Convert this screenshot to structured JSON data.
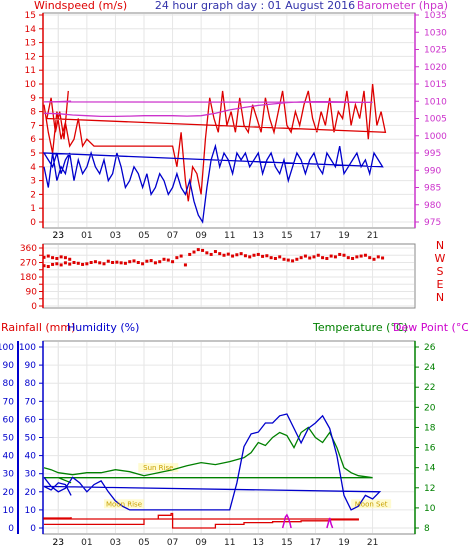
{
  "header": {
    "title": "24 hour graph day : 01 August 2016",
    "left_label": "Windspeed (m/s)",
    "right_label": "Barometer (hpa)"
  },
  "bottom_header": {
    "rainfall_label": "Rainfall (mm)",
    "humidity_label": "Humidity (%)",
    "temperature_label": "Temperature (°C)",
    "dewpoint_label": "Dew Point (°C)"
  },
  "colors": {
    "wind": "#dd0000",
    "gust": "#dd0000",
    "avg": "#0000cc",
    "baro": "#cc33cc",
    "dir": "#dd0000",
    "humidity": "#0000cc",
    "rain": "#dd0000",
    "temperature": "#008000",
    "dewpoint": "#cc00cc",
    "sun": "#e6c800",
    "grid": "#e6e6e6",
    "frame": "#888888"
  },
  "chart_data": [
    {
      "type": "line",
      "id": "wind-baro",
      "x_ticks": [
        "23",
        "01",
        "03",
        "05",
        "07",
        "09",
        "11",
        "13",
        "15",
        "17",
        "19",
        "21",
        "23"
      ],
      "left_axis": {
        "ylim": [
          0,
          15
        ],
        "ticks": [
          "0",
          "1",
          "2",
          "3",
          "4",
          "5",
          "6",
          "7",
          "8",
          "9",
          "10",
          "11",
          "12",
          "13",
          "14",
          "15"
        ]
      },
      "right_axis": {
        "ylim": [
          975,
          1035
        ],
        "ticks": [
          "975",
          "980",
          "985",
          "990",
          "995",
          "1000",
          "1005",
          "1010",
          "1015",
          "1020",
          "1025",
          "1030",
          "1035"
        ]
      },
      "series": [
        {
          "role": "gust",
          "color": "#dd0000",
          "x": [
            22.0,
            22.3,
            22.6,
            22.9,
            23.2,
            23.5,
            23.8,
            0.1,
            0.4,
            0.7,
            1.0,
            1.5,
            2.0,
            3.0,
            4.0,
            5.0,
            6.0,
            7.0,
            7.3,
            7.6,
            7.9,
            8.1,
            8.4,
            8.7,
            9.0,
            9.3,
            9.6,
            9.9,
            10.2,
            10.5,
            10.8,
            11.1,
            11.4,
            11.7,
            12.0,
            12.3,
            12.6,
            12.9,
            13.2,
            13.5,
            13.8,
            14.1,
            14.4,
            14.7,
            15.0,
            15.3,
            15.6,
            15.9,
            16.2,
            16.5,
            16.8,
            17.1,
            17.4,
            17.7,
            18.0,
            18.3,
            18.6,
            18.9,
            19.2,
            19.5,
            19.8,
            20.1,
            20.4,
            20.7,
            21.0,
            21.3,
            21.6,
            21.9,
            22.2,
            22.5,
            22.8,
            23.1,
            23.4,
            23.7
          ],
          "values": [
            8.5,
            6.5,
            5.0,
            8.0,
            6.0,
            7.2,
            5.5,
            6.0,
            7.5,
            5.5,
            6.0,
            5.5,
            5.5,
            5.5,
            5.5,
            5.5,
            5.5,
            5.5,
            4.0,
            6.5,
            3.0,
            1.5,
            4.0,
            3.5,
            2.0,
            6.0,
            9.0,
            7.5,
            6.5,
            9.5,
            7.0,
            8.0,
            6.5,
            9.0,
            7.0,
            6.5,
            8.5,
            7.5,
            6.5,
            9.0,
            7.5,
            6.5,
            8.0,
            9.5,
            7.0,
            6.5,
            8.0,
            7.0,
            8.5,
            9.5,
            7.5,
            6.5,
            8.0,
            7.0,
            9.0,
            6.5,
            8.0,
            7.5,
            9.5,
            7.0,
            8.5,
            7.5,
            9.5,
            6.0,
            10.0,
            7.0,
            8.0,
            6.5,
            7.5,
            9.0,
            6.5,
            8.0,
            6.0,
            9.5
          ]
        },
        {
          "role": "average",
          "color": "#0000cc",
          "x": [
            22.0,
            22.3,
            22.6,
            22.9,
            23.2,
            23.5,
            23.8,
            0.1,
            0.4,
            0.7,
            1.0,
            1.3,
            1.6,
            1.9,
            2.2,
            2.5,
            2.8,
            3.1,
            3.4,
            3.7,
            4.0,
            4.3,
            4.6,
            4.9,
            5.2,
            5.5,
            5.8,
            6.1,
            6.4,
            6.7,
            7.0,
            7.3,
            7.6,
            7.9,
            8.2,
            8.5,
            8.8,
            9.1,
            9.4,
            9.7,
            10.0,
            10.3,
            10.6,
            10.9,
            11.2,
            11.5,
            11.8,
            12.1,
            12.4,
            12.7,
            13.0,
            13.3,
            13.6,
            13.9,
            14.2,
            14.5,
            14.8,
            15.1,
            15.4,
            15.7,
            16.0,
            16.3,
            16.6,
            16.9,
            17.2,
            17.5,
            17.8,
            18.1,
            18.4,
            18.7,
            19.0,
            19.3,
            19.6,
            19.9,
            20.2,
            20.5,
            20.8,
            21.1,
            21.4,
            21.7,
            22.0,
            22.3,
            22.6,
            22.9,
            23.2,
            23.5,
            23.8
          ],
          "values": [
            4.0,
            2.5,
            5.0,
            3.0,
            4.0,
            3.5,
            5.0,
            3.0,
            4.5,
            3.5,
            4.0,
            5.0,
            4.0,
            3.5,
            4.5,
            3.0,
            3.5,
            5.0,
            4.0,
            2.5,
            3.0,
            4.0,
            3.5,
            2.5,
            3.5,
            2.0,
            2.5,
            3.5,
            3.0,
            2.0,
            2.5,
            3.5,
            2.5,
            2.0,
            3.0,
            1.5,
            0.5,
            0.0,
            2.5,
            4.5,
            5.5,
            4.0,
            5.0,
            4.5,
            3.5,
            5.0,
            4.5,
            5.0,
            4.0,
            4.5,
            5.0,
            3.5,
            4.5,
            5.0,
            4.0,
            3.5,
            4.5,
            3.0,
            4.0,
            5.0,
            4.5,
            3.5,
            4.5,
            5.0,
            4.0,
            3.5,
            5.0,
            4.5,
            4.0,
            5.5,
            3.5,
            4.0,
            4.5,
            5.0,
            4.0,
            4.5,
            3.5,
            5.0,
            4.5,
            4.0,
            5.0,
            4.5,
            4.0,
            5.0,
            3.5,
            4.5,
            5.0
          ]
        },
        {
          "role": "barometer",
          "color": "#cc33cc",
          "x": [
            22.0,
            23.0,
            0.0,
            1.0,
            2.0,
            3.0,
            4.0,
            5.0,
            6.0,
            7.0,
            8.0,
            9.0,
            10.0,
            11.0,
            12.0,
            13.0,
            14.0,
            15.0,
            16.0,
            17.0,
            18.0,
            19.0,
            20.0,
            21.0,
            22.0,
            23.0,
            23.9
          ],
          "values": [
            1006.5,
            1006.4,
            1006.0,
            1005.8,
            1005.6,
            1005.6,
            1005.7,
            1005.8,
            1005.8,
            1005.8,
            1005.7,
            1005.8,
            1006.5,
            1007.5,
            1008.2,
            1008.8,
            1009.2,
            1009.6,
            1009.8,
            1009.9,
            1009.9,
            1009.8,
            1009.7,
            1009.7,
            1009.8,
            1009.9,
            1010.0
          ]
        }
      ]
    },
    {
      "type": "scatter",
      "id": "wind-direction",
      "x_ticks": [
        "23",
        "01",
        "03",
        "05",
        "07",
        "09",
        "11",
        "13",
        "15",
        "17",
        "19",
        "21",
        "23"
      ],
      "ylim": [
        0,
        360
      ],
      "y_ticks": [
        "0",
        "45",
        "90",
        "135",
        "180",
        "225",
        "270",
        "315",
        "360"
      ],
      "compass": [
        "N",
        "W",
        "S",
        "E",
        "N"
      ],
      "series": [
        {
          "role": "direction",
          "color": "#dd0000",
          "x": [
            22.0,
            22.3,
            22.6,
            22.9,
            23.2,
            23.5,
            23.8,
            0.1,
            0.4,
            0.7,
            1.0,
            1.3,
            1.6,
            1.9,
            2.2,
            2.5,
            2.8,
            3.1,
            3.4,
            3.7,
            4.0,
            4.3,
            4.6,
            4.9,
            5.2,
            5.5,
            5.8,
            6.1,
            6.4,
            6.7,
            7.0,
            7.3,
            7.6,
            7.9,
            8.2,
            8.5,
            8.8,
            9.1,
            9.4,
            9.7,
            10.0,
            10.3,
            10.6,
            10.9,
            11.2,
            11.5,
            11.8,
            12.1,
            12.4,
            12.7,
            13.0,
            13.3,
            13.6,
            13.9,
            14.2,
            14.5,
            14.8,
            15.1,
            15.4,
            15.7,
            16.0,
            16.3,
            16.6,
            16.9,
            17.2,
            17.5,
            17.8,
            18.1,
            18.4,
            18.7,
            19.0,
            19.3,
            19.6,
            19.9,
            20.2,
            20.5,
            20.8,
            21.1,
            21.4,
            21.7,
            22.0,
            22.3,
            22.6,
            22.9,
            23.2,
            23.5,
            23.8
          ],
          "values": [
            250,
            245,
            258,
            262,
            255,
            268,
            260,
            270,
            265,
            258,
            262,
            270,
            275,
            268,
            262,
            278,
            270,
            272,
            268,
            265,
            275,
            280,
            270,
            262,
            278,
            282,
            268,
            275,
            290,
            285,
            275,
            300,
            310,
            255,
            320,
            335,
            350,
            345,
            330,
            320,
            338,
            325,
            315,
            322,
            310,
            318,
            325,
            312,
            305,
            315,
            320,
            308,
            312,
            300,
            295,
            305,
            290,
            285,
            280,
            290,
            300,
            310,
            298,
            305,
            315,
            300,
            295,
            310,
            305,
            320,
            315,
            300,
            295,
            305,
            310,
            315,
            300,
            290,
            305,
            298,
            302,
            310,
            300,
            295,
            305,
            300,
            290
          ]
        }
      ]
    },
    {
      "type": "line",
      "id": "rain-hum-temp",
      "x_ticks": [
        "23",
        "01",
        "03",
        "05",
        "07",
        "09",
        "11",
        "13",
        "15",
        "17",
        "19",
        "21",
        "23"
      ],
      "left_axis": {
        "ylim": [
          0,
          100
        ],
        "ticks": [
          "0",
          "10",
          "20",
          "30",
          "40",
          "50",
          "60",
          "70",
          "80",
          "90",
          "100"
        ]
      },
      "right_axis": {
        "ylim": [
          8,
          26
        ],
        "ticks": [
          "8",
          "10",
          "12",
          "14",
          "16",
          "18",
          "20",
          "22",
          "24",
          "26"
        ]
      },
      "annotations": [
        {
          "text": "Sun Rise",
          "x": 6.0,
          "y": 32
        },
        {
          "text": "Moon Rise",
          "x": 3.6,
          "y": 12
        },
        {
          "text": "Moon Set",
          "x": 20.9,
          "y": 12
        }
      ],
      "series": [
        {
          "role": "temperature",
          "color": "#008000",
          "x": [
            22.0,
            22.5,
            23.0,
            0.0,
            1.0,
            2.0,
            3.0,
            4.0,
            5.0,
            6.0,
            7.0,
            8.0,
            9.0,
            10.0,
            11.0,
            12.0,
            12.5,
            13.0,
            13.5,
            14.0,
            14.5,
            15.0,
            15.5,
            16.0,
            16.5,
            17.0,
            17.5,
            18.0,
            18.5,
            19.0,
            19.5,
            20.0,
            21.0,
            22.0,
            23.0,
            23.9
          ],
          "values": [
            14.0,
            13.8,
            13.5,
            13.3,
            13.5,
            13.5,
            13.8,
            13.6,
            13.2,
            13.5,
            13.8,
            14.2,
            14.5,
            14.3,
            14.6,
            15.0,
            15.5,
            16.5,
            16.2,
            17.0,
            17.5,
            17.2,
            16.0,
            17.5,
            18.0,
            17.0,
            16.5,
            17.5,
            16.0,
            14.0,
            13.5,
            13.2,
            13.0,
            13.0,
            13.0,
            12.5
          ]
        },
        {
          "role": "humidity",
          "color": "#0000cc",
          "x": [
            22.0,
            22.5,
            23.0,
            23.5,
            0.0,
            0.5,
            1.0,
            1.5,
            2.0,
            2.5,
            3.0,
            3.5,
            4.0,
            5.0,
            6.0,
            7.0,
            8.0,
            9.0,
            10.0,
            10.5,
            11.0,
            11.5,
            12.0,
            12.5,
            13.0,
            13.5,
            14.0,
            14.5,
            15.0,
            15.5,
            16.0,
            16.5,
            17.0,
            17.5,
            18.0,
            18.5,
            19.0,
            19.5,
            20.0,
            20.5,
            21.0,
            21.5,
            22.0,
            22.5,
            23.0,
            23.5,
            23.9
          ],
          "values": [
            28,
            23,
            20,
            22,
            28,
            25,
            20,
            24,
            26,
            20,
            15,
            12,
            10,
            10,
            10,
            10,
            10,
            10,
            10,
            10,
            10,
            25,
            45,
            52,
            53,
            58,
            58,
            62,
            63,
            55,
            47,
            55,
            58,
            62,
            55,
            40,
            18,
            10,
            12,
            18,
            16,
            20,
            23,
            21,
            25,
            24,
            18
          ]
        },
        {
          "role": "rain",
          "color": "#dd0000",
          "x": [
            22.0,
            0.0,
            2.0,
            4.0,
            5.0,
            6.0,
            6.9,
            7.0,
            7.5,
            9.0,
            10.0,
            12.0,
            14.0,
            16.0,
            18.0,
            20.0,
            22.0,
            23.9
          ],
          "values": [
            2,
            2,
            2,
            2,
            5,
            7,
            8,
            0,
            0,
            0,
            2,
            3,
            3.5,
            4,
            4.5,
            5,
            5.5,
            6
          ]
        },
        {
          "role": "dewpoint",
          "color": "#cc00cc",
          "x": [
            14.7,
            14.8,
            14.9,
            15.0,
            15.1,
            15.2,
            15.3,
            17.8,
            17.9,
            18.0,
            18.1,
            18.2
          ],
          "values": [
            8.0,
            8.5,
            9.1,
            9.3,
            9.0,
            8.6,
            8.0,
            8.0,
            8.5,
            9.0,
            8.4,
            8.0
          ]
        }
      ]
    }
  ]
}
